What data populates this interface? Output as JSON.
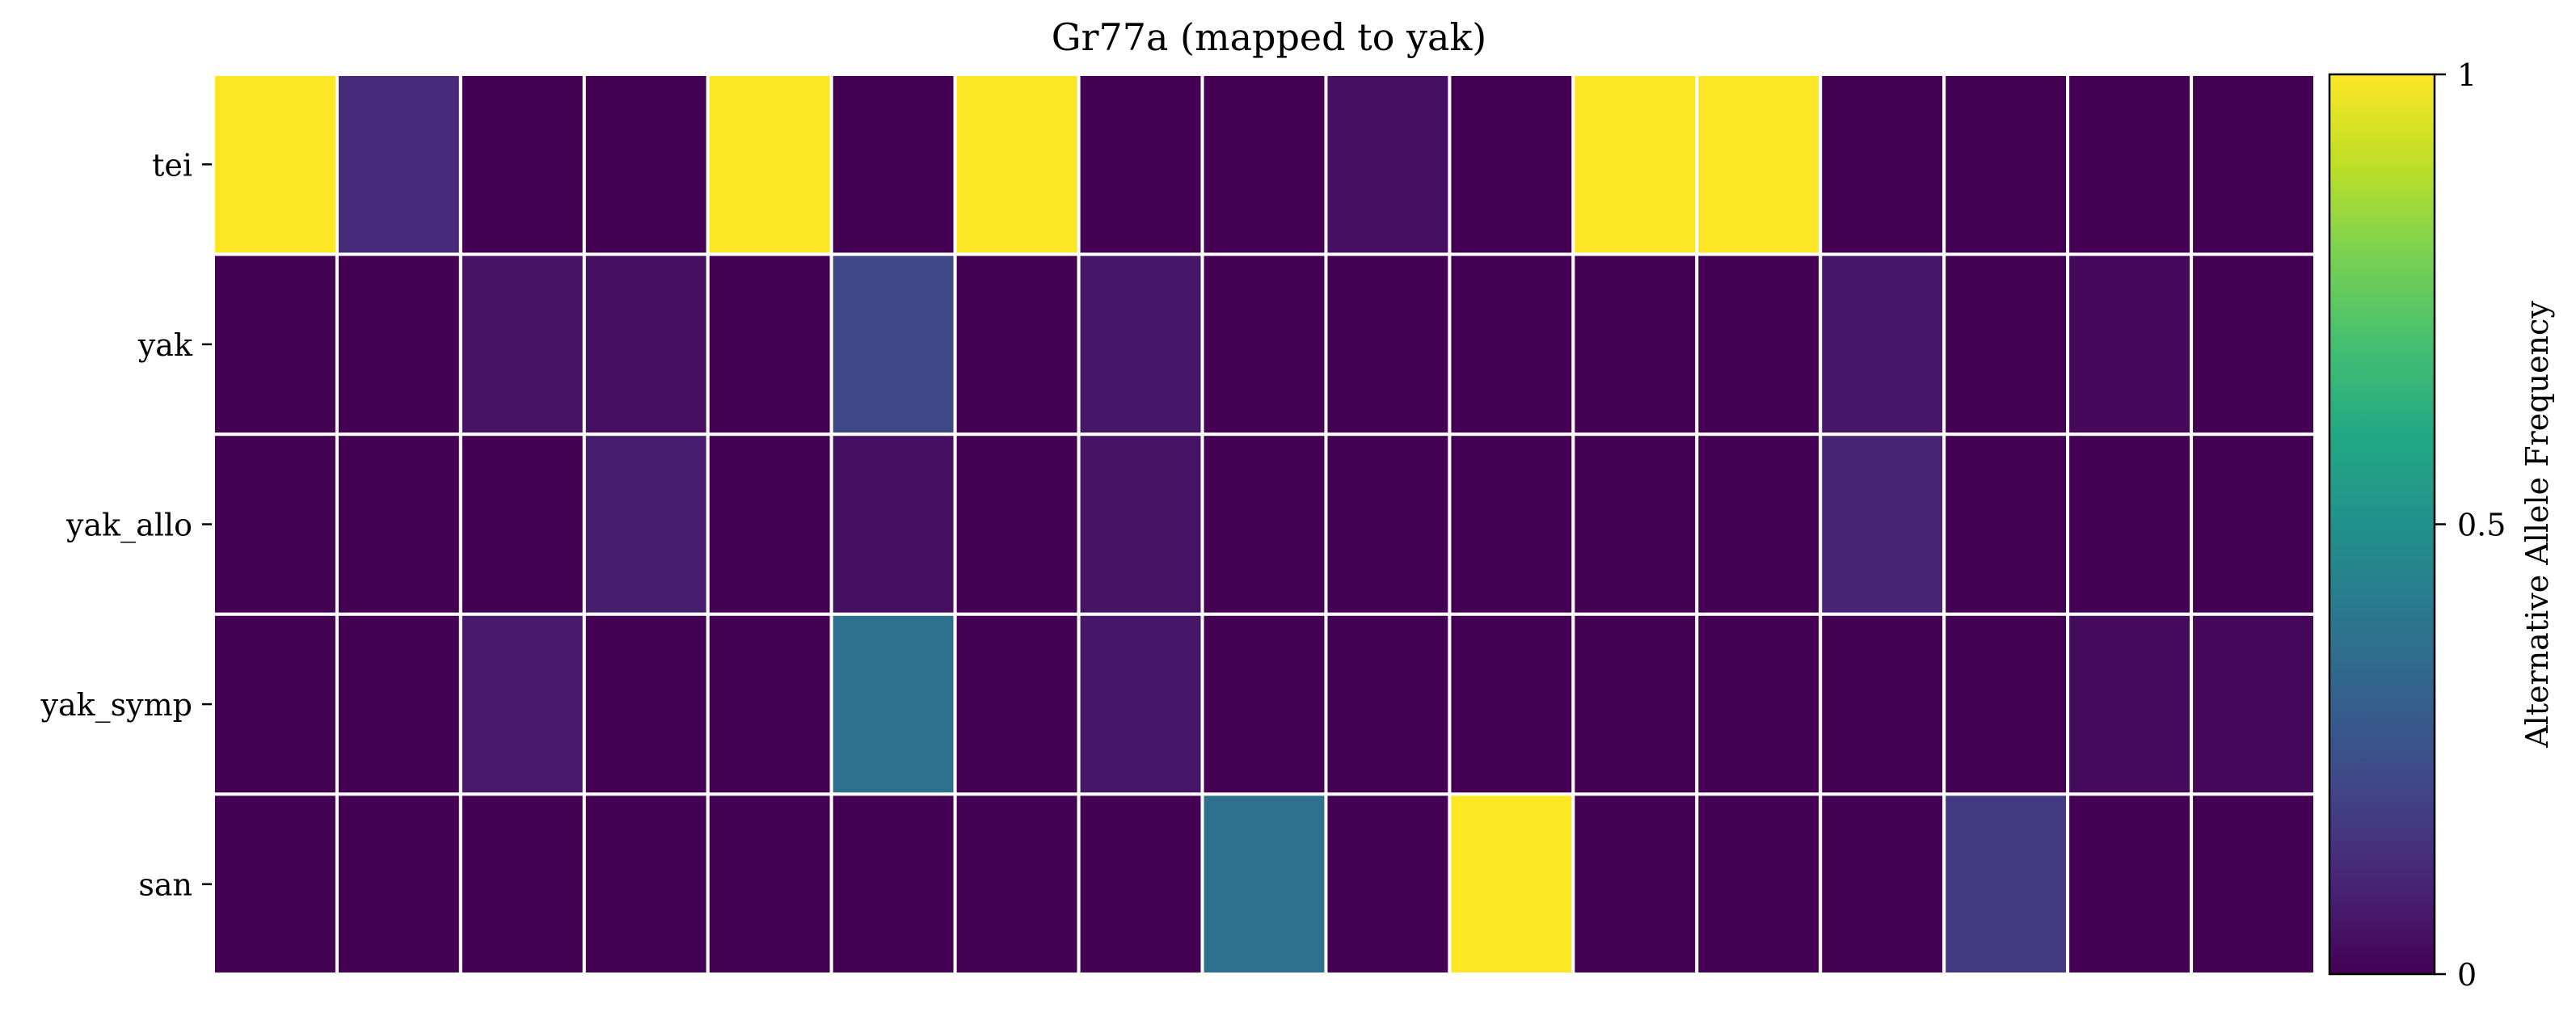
{
  "chart_data": {
    "type": "heatmap",
    "title": "Gr77a (mapped to yak)",
    "rows": [
      "tei",
      "yak",
      "yak_allo",
      "yak_symp",
      "san"
    ],
    "n_columns": 17,
    "values": [
      [
        1.0,
        0.12,
        0.0,
        0.0,
        1.0,
        0.0,
        1.0,
        0.0,
        0.0,
        0.04,
        0.0,
        1.0,
        1.0,
        0.0,
        0.0,
        0.0,
        0.0
      ],
      [
        0.0,
        0.0,
        0.05,
        0.04,
        0.0,
        0.22,
        0.0,
        0.06,
        0.0,
        0.0,
        0.0,
        0.0,
        0.0,
        0.06,
        0.0,
        0.02,
        0.0
      ],
      [
        0.0,
        0.0,
        0.0,
        0.08,
        0.0,
        0.04,
        0.0,
        0.05,
        0.0,
        0.0,
        0.0,
        0.0,
        0.0,
        0.1,
        0.0,
        0.0,
        0.0
      ],
      [
        0.0,
        0.0,
        0.07,
        0.0,
        0.0,
        0.37,
        0.0,
        0.06,
        0.0,
        0.0,
        0.0,
        0.0,
        0.0,
        0.0,
        0.0,
        0.03,
        0.02
      ],
      [
        0.0,
        0.0,
        0.0,
        0.0,
        0.0,
        0.0,
        0.0,
        0.0,
        0.37,
        0.0,
        1.0,
        0.0,
        0.0,
        0.0,
        0.17,
        0.0,
        0.0
      ]
    ],
    "colorscale": "viridis",
    "color_range": [
      0,
      1
    ],
    "colorbar": {
      "label": "Alternative Allele Frequency",
      "ticks": [
        0,
        0.5,
        1
      ],
      "tick_labels": [
        "0",
        "0.5",
        "1"
      ]
    },
    "xlabel": "",
    "ylabel": "",
    "grid_line_color": "#ffffff"
  }
}
